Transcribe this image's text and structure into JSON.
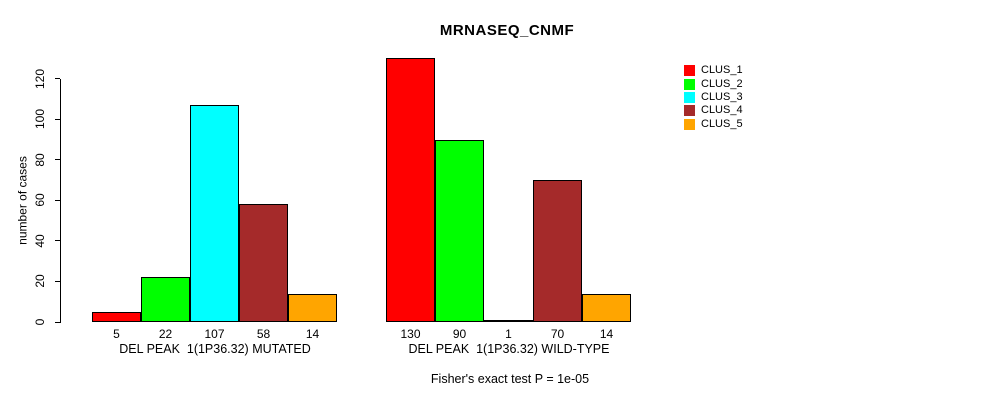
{
  "title": "MRNASEQ_CNMF",
  "ylabel": "number of cases",
  "footer": "Fisher's exact test P = 1e-05",
  "legend": {
    "items": [
      {
        "label": "CLUS_1",
        "color": "#FF0000"
      },
      {
        "label": "CLUS_2",
        "color": "#00FF00"
      },
      {
        "label": "CLUS_3",
        "color": "#00FFFF"
      },
      {
        "label": "CLUS_4",
        "color": "#A52A2A"
      },
      {
        "label": "CLUS_5",
        "color": "#FFA500"
      }
    ]
  },
  "chart_data": {
    "type": "bar",
    "title": "MRNASEQ_CNMF",
    "xlabel": "",
    "ylabel": "number of cases",
    "categories": [
      "DEL PEAK  1(1P36.32) MUTATED",
      "DEL PEAK  1(1P36.32) WILD-TYPE"
    ],
    "series": [
      {
        "name": "CLUS_1",
        "color": "#FF0000",
        "values": [
          5,
          130
        ]
      },
      {
        "name": "CLUS_2",
        "color": "#00FF00",
        "values": [
          22,
          90
        ]
      },
      {
        "name": "CLUS_3",
        "color": "#00FFFF",
        "values": [
          107,
          1
        ]
      },
      {
        "name": "CLUS_4",
        "color": "#A52A2A",
        "values": [
          58,
          70
        ]
      },
      {
        "name": "CLUS_5",
        "color": "#FFA500",
        "values": [
          14,
          14
        ]
      }
    ],
    "bar_value_labels": [
      [
        5,
        22,
        107,
        58,
        14
      ],
      [
        130,
        90,
        1,
        70,
        14
      ]
    ],
    "yticks": [
      0,
      20,
      40,
      60,
      80,
      100,
      120
    ],
    "ylim": [
      0,
      130
    ],
    "grid": false,
    "legend_position": "right",
    "annotation": "Fisher's exact test P = 1e-05",
    "bar_edge_color": "#000000",
    "text_color": "#000000",
    "background_color": "#FFFFFF"
  }
}
